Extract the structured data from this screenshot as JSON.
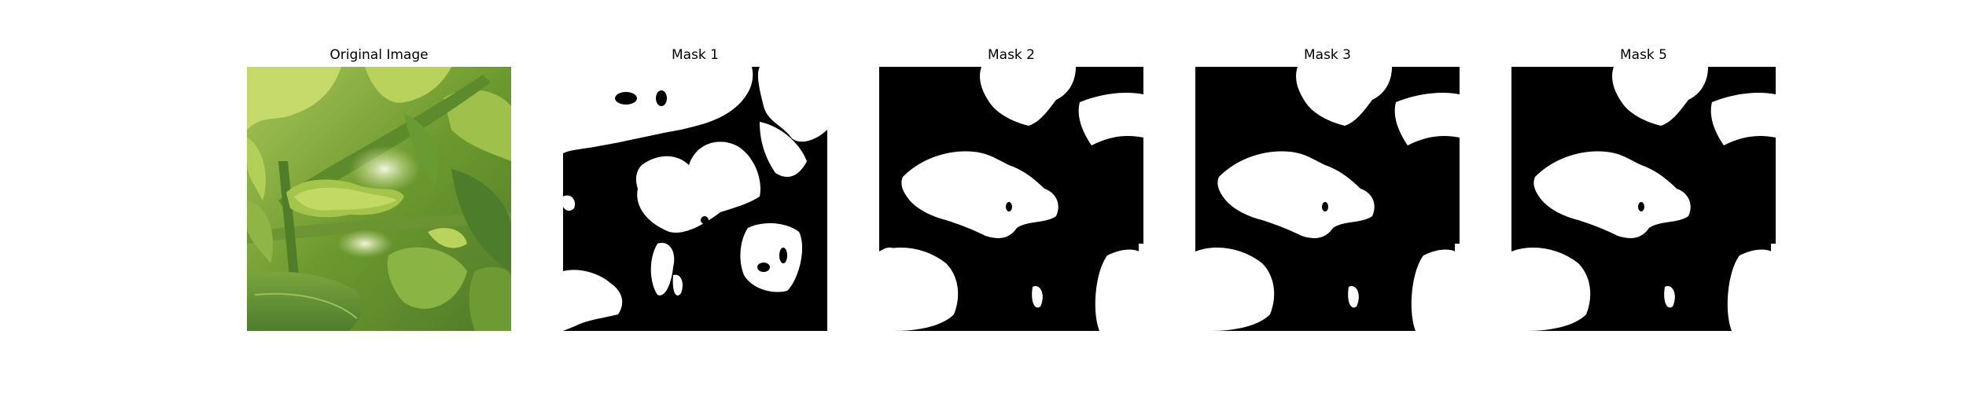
{
  "figure": {
    "panels": [
      {
        "title": "Original Image",
        "content": "photo of green leafy vegetation"
      },
      {
        "title": "Mask 1",
        "content": "binary mask"
      },
      {
        "title": "Mask 2",
        "content": "binary mask"
      },
      {
        "title": "Mask 3",
        "content": "binary mask"
      },
      {
        "title": "Mask 5",
        "content": "binary mask"
      }
    ],
    "colors": {
      "mask_foreground": "#ffffff",
      "mask_background": "#000000"
    }
  }
}
